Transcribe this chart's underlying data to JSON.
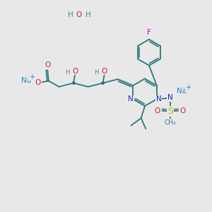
{
  "bg_color": "#e8e8e8",
  "bond_color": "#2a7a7a",
  "lw": 1.3,
  "text_colors": {
    "O": "#cc2222",
    "N": "#2222cc",
    "S": "#bbbb00",
    "F": "#cc00cc",
    "Na": "#2288cc",
    "H": "#4a8888",
    "C": "#2a7a7a",
    "plus": "#2288cc"
  },
  "fs": 7.5,
  "fs_sm": 6.0
}
